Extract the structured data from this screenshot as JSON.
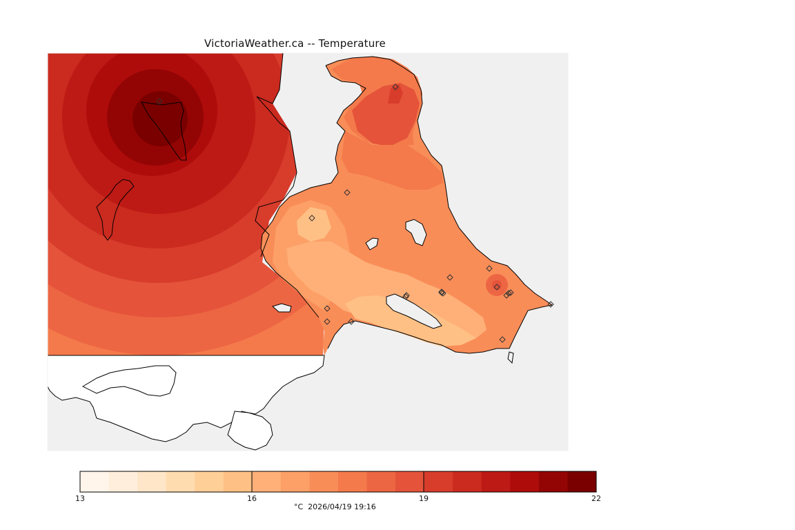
{
  "title": "VictoriaWeather.ca -- Temperature",
  "caption": "°C  2026/04/19 19:16",
  "colors": {
    "background": "#f0f0f0",
    "outside": "#ffffff",
    "coast": "#000000",
    "ramp": [
      "#fff5ea",
      "#ffeedb",
      "#ffe6c9",
      "#ffdcb0",
      "#ffcf98",
      "#ffc085",
      "#feb078",
      "#fca067",
      "#f98d58",
      "#f47a4b",
      "#ed6643",
      "#e4533a",
      "#d83c2b",
      "#cb2a1f",
      "#bd1a15",
      "#ae0c0b",
      "#930504",
      "#7a0000"
    ]
  },
  "legend": {
    "min": 13,
    "max": 22,
    "ticks": [
      "13",
      "16",
      "19",
      "22"
    ]
  },
  "stations": {
    "count": 20,
    "icon": "diamond-icon"
  }
}
